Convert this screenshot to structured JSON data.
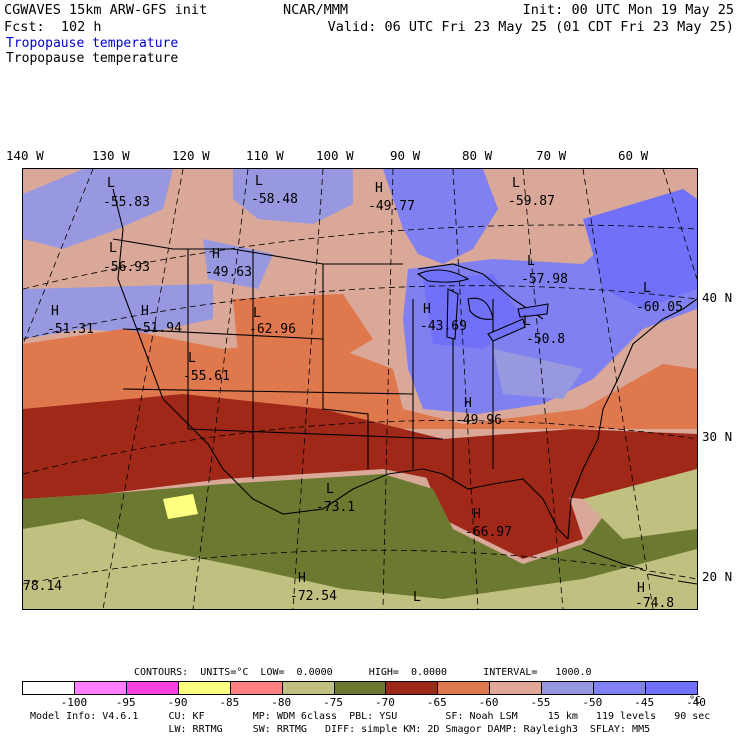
{
  "header": {
    "model": "CGWAVES 15km ARW-GFS init",
    "center": "NCAR/MMM",
    "init": "Init: 00 UTC Mon 19 May 25",
    "fcst": "Fcst:  102 h",
    "valid": "Valid: 06 UTC Fri 23 May 25 (01 CDT Fri 23 May 25)",
    "field_blue": "Tropopause temperature",
    "field_black": "Tropopause temperature"
  },
  "longitudes": [
    "140 W",
    "130 W",
    "120 W",
    "110 W",
    "100 W",
    "90 W",
    "80 W",
    "70 W",
    "60 W"
  ],
  "latitudes": [
    "40 N",
    "30 N",
    "20 N"
  ],
  "annotations": [
    {
      "mark": "L",
      "value": "-55.83"
    },
    {
      "mark": "L",
      "value": "-58.48"
    },
    {
      "mark": "H",
      "value": "-49.77"
    },
    {
      "mark": "L",
      "value": "-59.87"
    },
    {
      "mark": "L",
      "value": "-56.93"
    },
    {
      "mark": "H",
      "value": "-49.63"
    },
    {
      "mark": "L",
      "value": "-57.98"
    },
    {
      "mark": "L",
      "value": "-60.05"
    },
    {
      "mark": "H",
      "value": "-51.31"
    },
    {
      "mark": "H",
      "value": "-51.94"
    },
    {
      "mark": "L",
      "value": "-62.96"
    },
    {
      "mark": "H",
      "value": "-43.69"
    },
    {
      "mark": "L",
      "value": "-50.8"
    },
    {
      "mark": "L",
      "value": "-55.61"
    },
    {
      "mark": "H",
      "value": "-49.96"
    },
    {
      "mark": "L",
      "value": "-73.1"
    },
    {
      "mark": "H",
      "value": "-66.97"
    },
    {
      "mark": "",
      "value": "78.14"
    },
    {
      "mark": "H",
      "value": "-72.54"
    },
    {
      "mark": "L",
      "value": ""
    },
    {
      "mark": "H",
      "value": "-74.8"
    }
  ],
  "contours_line": "CONTOURS:  UNITS=°C  LOW=  0.0000      HIGH=  0.0000      INTERVAL=   1000.0",
  "colorbar": {
    "colors": [
      "#ffffff",
      "#ff80ff",
      "#ff40e0",
      "#ffff80",
      "#ff8080",
      "#c0c080",
      "#6b7a30",
      "#a02818",
      "#e0784e",
      "#e0a898",
      "#9898e0",
      "#8080f0",
      "#7070f8"
    ],
    "ticks": [
      "-100",
      "-95",
      "-90",
      "-85",
      "-80",
      "-75",
      "-70",
      "-65",
      "-60",
      "-55",
      "-50",
      "-45",
      "-40"
    ],
    "unit": "°C"
  },
  "model_info": {
    "line1": "Model Info: V4.6.1     CU: KF        MP: WDM 6class  PBL: YSU        SF: Noah LSM     15 km   119 levels   90 sec",
    "line2": "                       LW: RRTMG     SW: RRTMG   DIFF: simple KM: 2D Smagor DAMP: Rayleigh3  SFLAY: MM5"
  }
}
